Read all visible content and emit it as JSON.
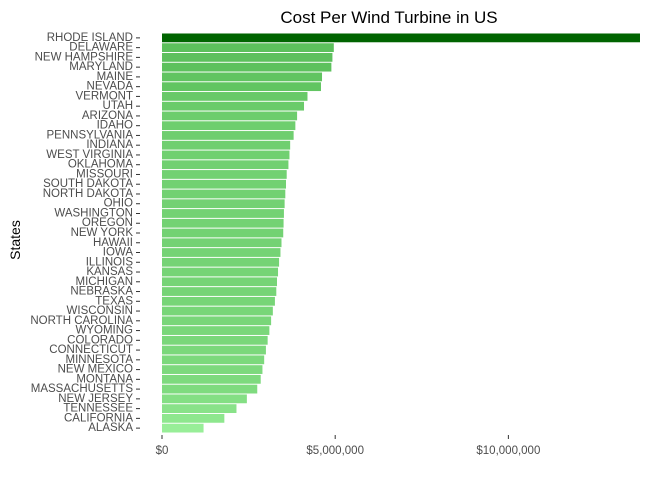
{
  "chart_data": {
    "type": "bar",
    "orientation": "horizontal",
    "title": "Cost Per Wind Turbine in US",
    "xlabel": "",
    "ylabel": "States",
    "xlim": [
      0,
      13800000
    ],
    "x_ticks": [
      0,
      5000000,
      10000000
    ],
    "x_tick_labels": [
      "$0",
      "$5,000,000",
      "$10,000,000"
    ],
    "grid": false,
    "legend": "none",
    "colors": {
      "highest": "#006400",
      "low": "#98ee98",
      "high": "#5cc05c"
    },
    "categories": [
      "RHODE ISLAND",
      "DELAWARE",
      "NEW HAMPSHIRE",
      "MARYLAND",
      "MAINE",
      "NEVADA",
      "VERMONT",
      "UTAH",
      "ARIZONA",
      "IDAHO",
      "PENNSYLVANIA",
      "INDIANA",
      "WEST VIRGINIA",
      "OKLAHOMA",
      "MISSOURI",
      "SOUTH DAKOTA",
      "NORTH DAKOTA",
      "OHIO",
      "WASHINGTON",
      "OREGON",
      "NEW YORK",
      "HAWAII",
      "IOWA",
      "ILLINOIS",
      "KANSAS",
      "MICHIGAN",
      "NEBRASKA",
      "TEXAS",
      "WISCONSIN",
      "NORTH CAROLINA",
      "WYOMING",
      "COLORADO",
      "CONNECTICUT",
      "MINNESOTA",
      "NEW MEXICO",
      "MONTANA",
      "MASSACHUSETTS",
      "NEW JERSEY",
      "TENNESSEE",
      "CALIFORNIA",
      "ALASKA"
    ],
    "values": [
      13800000,
      4960000,
      4920000,
      4890000,
      4620000,
      4590000,
      4200000,
      4100000,
      3900000,
      3850000,
      3800000,
      3700000,
      3680000,
      3650000,
      3600000,
      3580000,
      3560000,
      3540000,
      3520000,
      3510000,
      3500000,
      3450000,
      3420000,
      3380000,
      3350000,
      3320000,
      3300000,
      3260000,
      3200000,
      3150000,
      3100000,
      3050000,
      3000000,
      2950000,
      2900000,
      2850000,
      2750000,
      2450000,
      2150000,
      1800000,
      1200000
    ]
  }
}
